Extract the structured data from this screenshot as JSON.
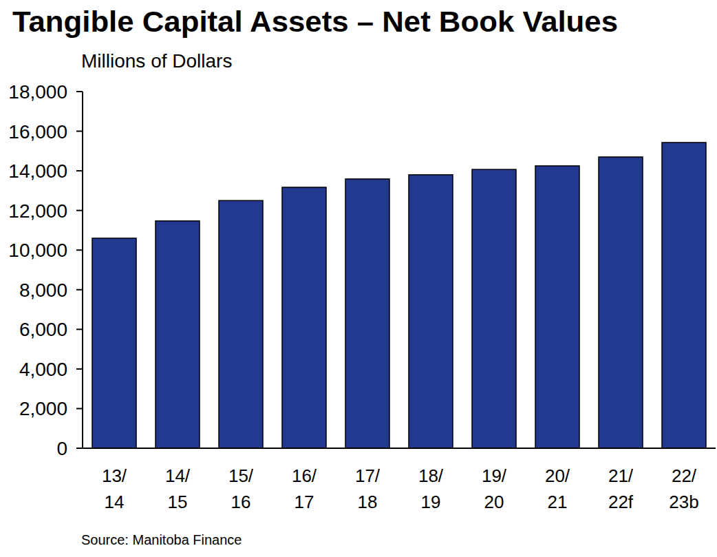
{
  "chart_data": {
    "type": "bar",
    "title": "Tangible Capital Assets – Net Book Values",
    "subtitle": "Millions of Dollars",
    "source": "Source: Manitoba Finance",
    "categories": [
      "13/14",
      "14/15",
      "15/16",
      "16/17",
      "17/18",
      "18/19",
      "19/20",
      "20/21",
      "21/22f",
      "22/23b"
    ],
    "values": [
      10600,
      11470,
      12500,
      13170,
      13590,
      13800,
      14070,
      14250,
      14700,
      15430
    ],
    "color": "#213a8f",
    "ylim": [
      0,
      18000
    ],
    "yticks": [
      0,
      {
        "value": 2000,
        "label": "2,000"
      },
      {
        "value": 4000,
        "label": "4,000"
      },
      {
        "value": 6000,
        "label": "6,000"
      },
      {
        "value": 8000,
        "label": "8,000"
      },
      {
        "value": 10000,
        "label": "10,000"
      },
      {
        "value": 12000,
        "label": "12,000"
      },
      {
        "value": 14000,
        "label": "14,000"
      },
      {
        "value": 16000,
        "label": "16,000"
      },
      {
        "value": 18000,
        "label": "18,000"
      }
    ],
    "grid": false
  }
}
